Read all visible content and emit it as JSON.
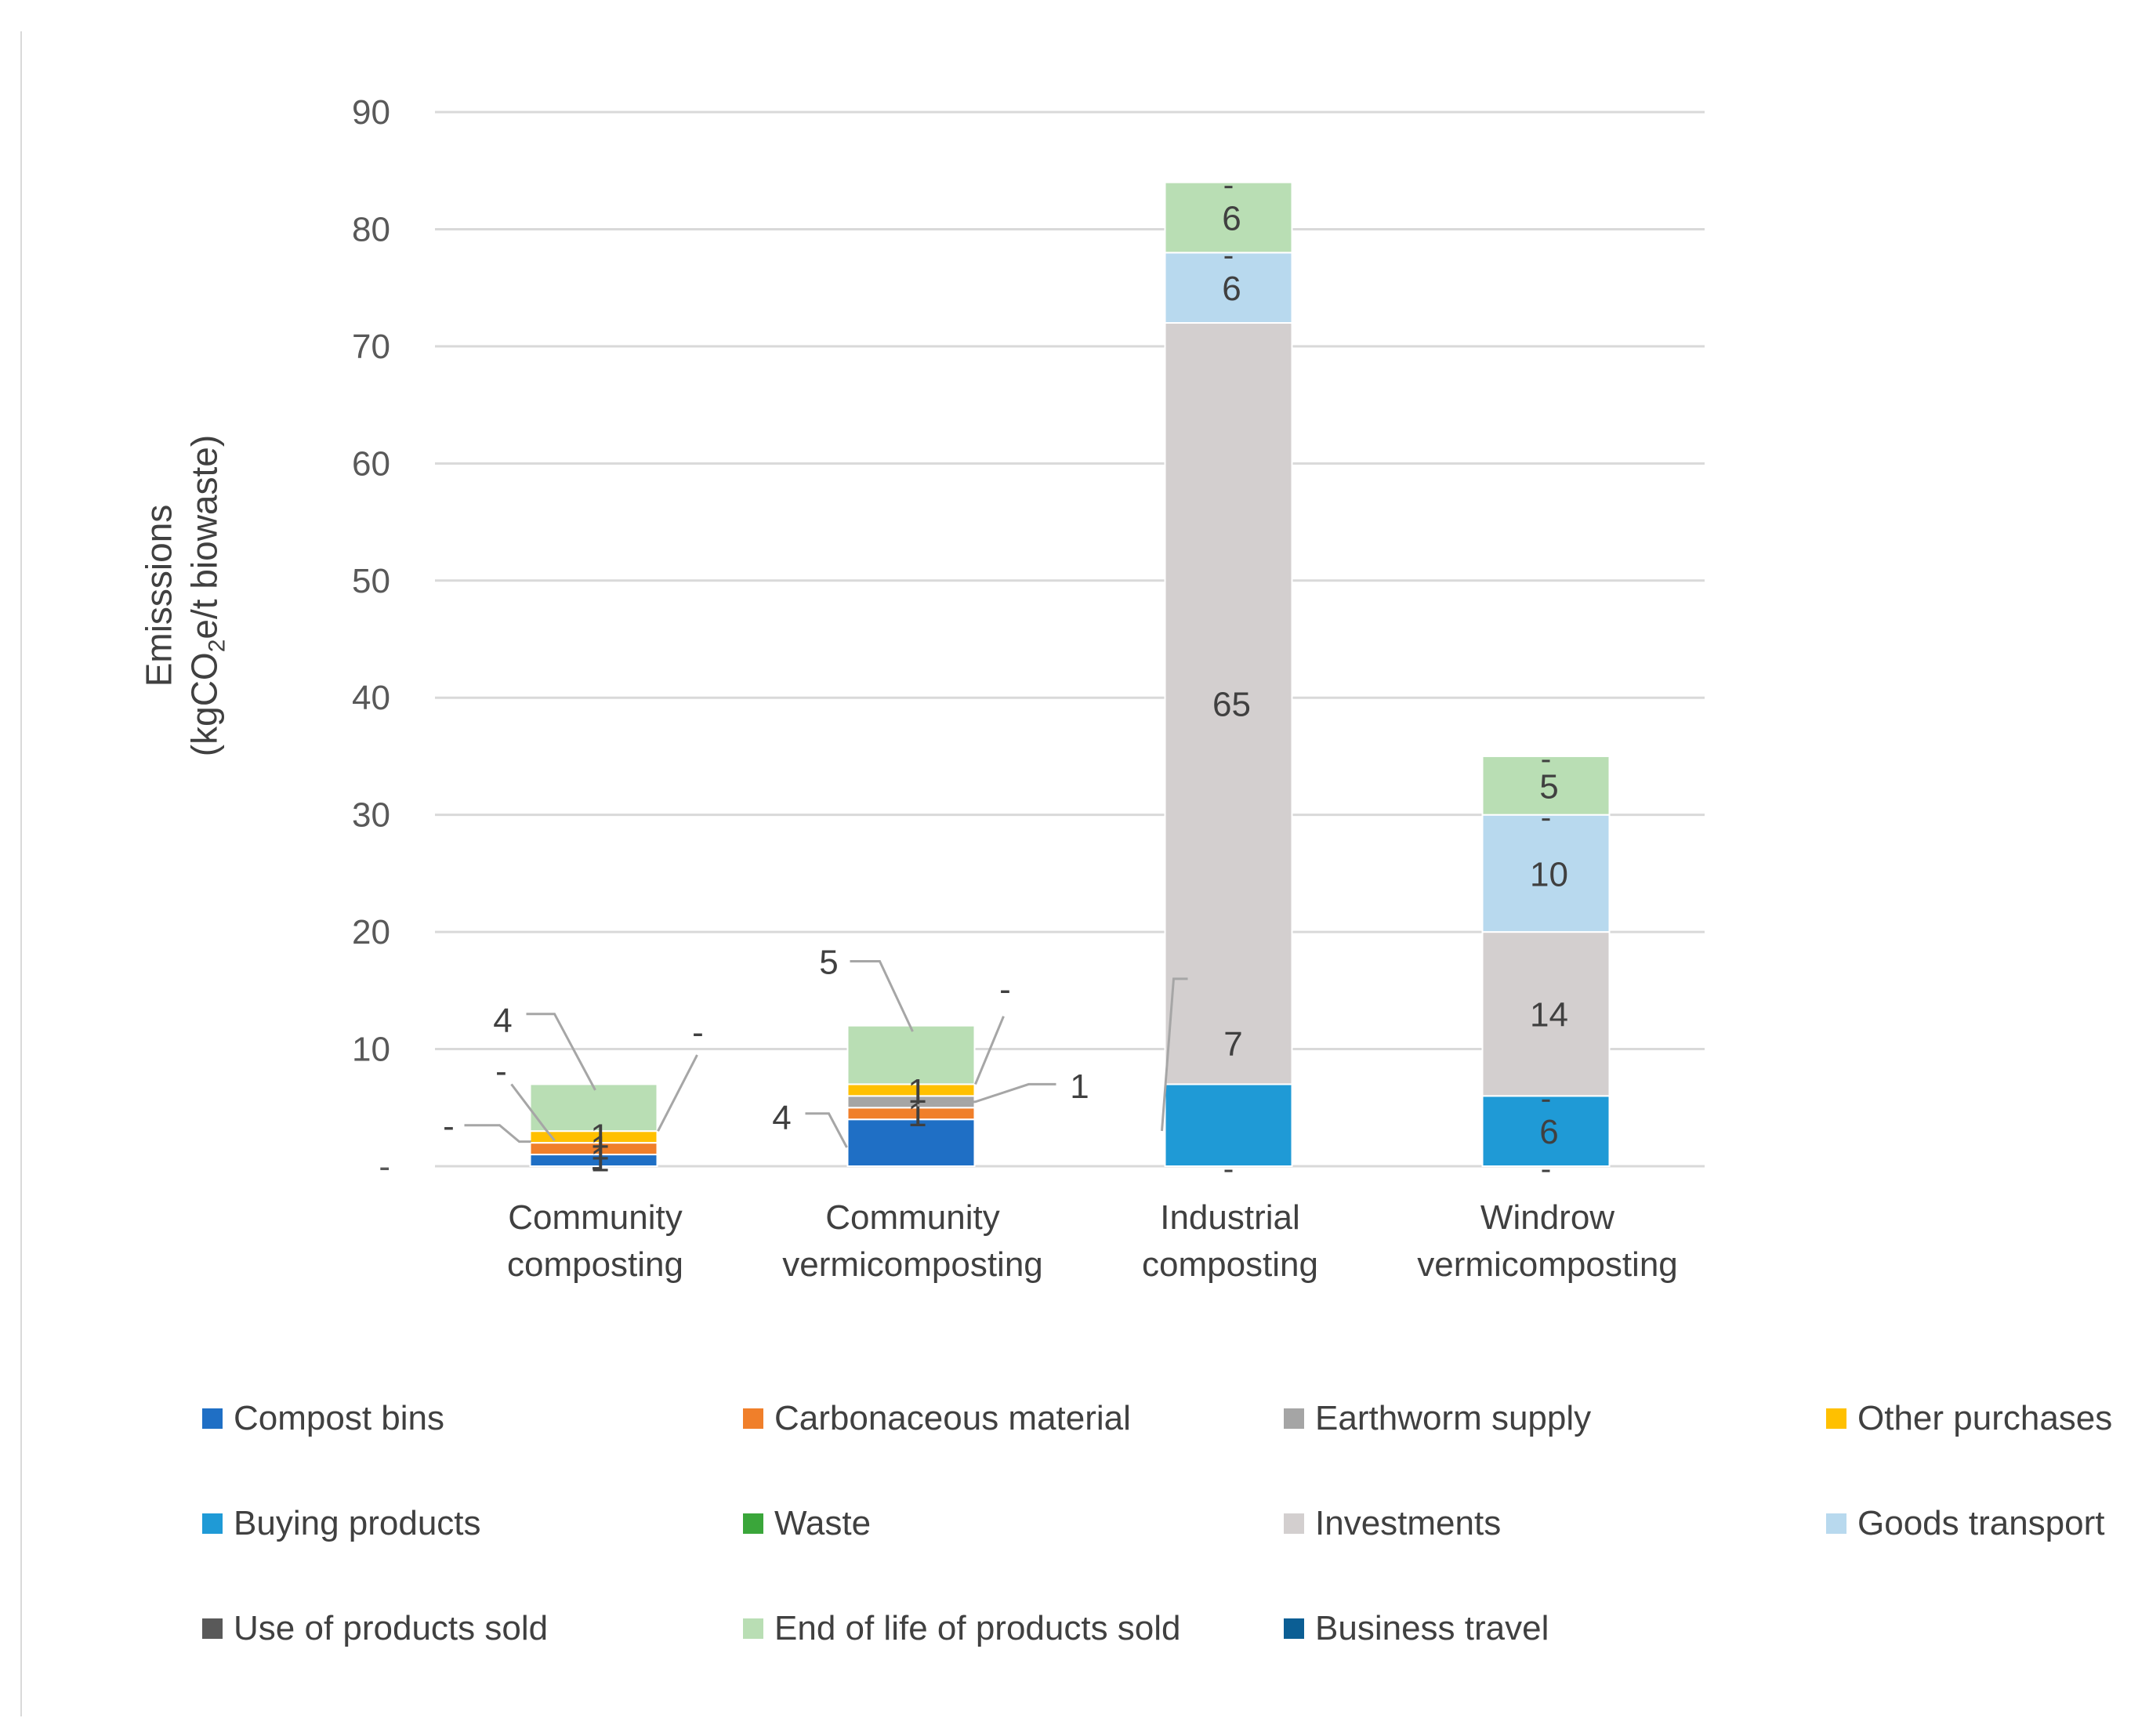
{
  "chart_data": {
    "type": "bar",
    "stacked": true,
    "title": "",
    "ylabel": "Emisssions",
    "ylabel_unit_main": "(kgCO",
    "ylabel_unit_sub": "2",
    "ylabel_unit_tail": "e/t  biowaste)",
    "ylim": [
      0,
      90
    ],
    "yticks": [
      0,
      10,
      20,
      30,
      40,
      50,
      60,
      70,
      80,
      90
    ],
    "ytick_labels": [
      "-",
      "10",
      "20",
      "30",
      "40",
      "50",
      "60",
      "70",
      "80",
      "90"
    ],
    "grid": true,
    "legend_position": "bottom",
    "categories": [
      [
        "Community",
        "composting"
      ],
      [
        "Community",
        "vermicomposting"
      ],
      [
        "Industrial",
        "composting"
      ],
      [
        "Windrow",
        "vermicomposting"
      ]
    ],
    "series": [
      {
        "name": "Compost bins",
        "color": "#1f6fc5",
        "values": [
          1,
          4,
          0,
          0
        ]
      },
      {
        "name": "Carbonaceous material",
        "color": "#f07f2a",
        "values": [
          1,
          1,
          0,
          0
        ]
      },
      {
        "name": "Earthworm supply",
        "color": "#a5a5a5",
        "values": [
          0,
          1,
          0,
          0
        ]
      },
      {
        "name": "Other purchases",
        "color": "#ffc000",
        "values": [
          1,
          1,
          0,
          0
        ]
      },
      {
        "name": "Buying products",
        "color": "#1f9ad6",
        "values": [
          0,
          0,
          7,
          6
        ]
      },
      {
        "name": "Waste",
        "color": "#3aa63a",
        "values": [
          0,
          0,
          0,
          0
        ]
      },
      {
        "name": "Investments",
        "color": "#d3cfcf",
        "values": [
          0,
          0,
          65,
          14
        ]
      },
      {
        "name": "Goods transport",
        "color": "#b8d9ee",
        "values": [
          0,
          0,
          6,
          10
        ]
      },
      {
        "name": "Use of products sold",
        "color": "#595959",
        "values": [
          0,
          0,
          0,
          0
        ]
      },
      {
        "name": "End of life of products sold",
        "color": "#b9deb4",
        "values": [
          4,
          5,
          6,
          5
        ]
      },
      {
        "name": "Business travel",
        "color": "#0b5e94",
        "values": [
          0,
          0,
          0,
          0
        ]
      }
    ],
    "data_labels": [
      [
        "1",
        "1",
        "",
        "1",
        "",
        "",
        "",
        "",
        "",
        "4",
        ""
      ],
      [
        "4",
        "1",
        "1",
        "1",
        "",
        "",
        "",
        "",
        "",
        "5",
        ""
      ],
      [
        "",
        "",
        "",
        "",
        "7",
        "",
        "65",
        "6",
        "",
        "6",
        ""
      ],
      [
        "",
        "",
        "",
        "",
        "6",
        "",
        "14",
        "10",
        "",
        "5",
        ""
      ]
    ],
    "dash_labels": [
      "-",
      "-",
      "-",
      "-",
      "-",
      "-"
    ]
  }
}
